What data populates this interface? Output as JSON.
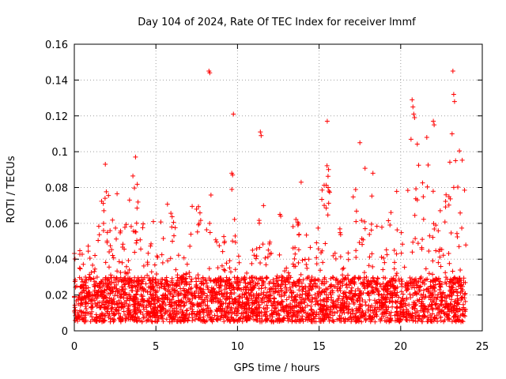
{
  "chart_data": {
    "type": "scatter",
    "title": "Day 104 of 2024, Rate Of TEC Index for receiver lmmf",
    "xlabel": "GPS time / hours",
    "ylabel": "ROTI / TECUs",
    "xlim": [
      0,
      25
    ],
    "ylim": [
      0,
      0.16
    ],
    "x_ticks": [
      0,
      5,
      10,
      15,
      20,
      25
    ],
    "x_tick_labels": [
      "0",
      "5",
      "10",
      "15",
      "20",
      "25"
    ],
    "y_ticks": [
      0,
      0.02,
      0.04,
      0.06,
      0.08,
      0.1,
      0.12,
      0.14,
      0.16
    ],
    "y_tick_labels": [
      "0",
      "0.02",
      "0.04",
      "0.06",
      "0.08",
      "0.1",
      "0.12",
      "0.14",
      "0.16"
    ],
    "grid": true,
    "marker": "+",
    "series": [
      {
        "name": "ROTI",
        "color": "#ff0000",
        "x_range": [
          0,
          24
        ],
        "baseline_band": [
          0.005,
          0.03
        ],
        "envelope": [
          [
            0.0,
            0.045
          ],
          [
            1.0,
            0.05
          ],
          [
            1.8,
            0.09
          ],
          [
            2.6,
            0.085
          ],
          [
            3.0,
            0.06
          ],
          [
            3.8,
            0.097
          ],
          [
            4.5,
            0.05
          ],
          [
            5.2,
            0.075
          ],
          [
            6.0,
            0.07
          ],
          [
            7.0,
            0.035
          ],
          [
            7.3,
            0.085
          ],
          [
            8.0,
            0.06
          ],
          [
            8.3,
            0.08
          ],
          [
            9.0,
            0.045
          ],
          [
            9.6,
            0.088
          ],
          [
            10.5,
            0.03
          ],
          [
            11.2,
            0.075
          ],
          [
            12.0,
            0.065
          ],
          [
            13.0,
            0.035
          ],
          [
            13.8,
            0.083
          ],
          [
            14.5,
            0.045
          ],
          [
            15.5,
            0.095
          ],
          [
            16.5,
            0.05
          ],
          [
            17.5,
            0.093
          ],
          [
            18.3,
            0.088
          ],
          [
            19.0,
            0.055
          ],
          [
            19.8,
            0.08
          ],
          [
            20.5,
            0.11
          ],
          [
            21.5,
            0.11
          ],
          [
            22.3,
            0.08
          ],
          [
            22.8,
            0.095
          ],
          [
            23.3,
            0.11
          ],
          [
            24.0,
            0.092
          ]
        ],
        "outliers": [
          [
            8.25,
            0.145
          ],
          [
            8.3,
            0.144
          ],
          [
            9.75,
            0.121
          ],
          [
            11.4,
            0.111
          ],
          [
            11.45,
            0.109
          ],
          [
            15.5,
            0.117
          ],
          [
            23.2,
            0.145
          ],
          [
            23.25,
            0.132
          ],
          [
            23.3,
            0.128
          ],
          [
            20.7,
            0.129
          ],
          [
            20.75,
            0.125
          ],
          [
            20.8,
            0.121
          ],
          [
            20.85,
            0.119
          ],
          [
            22.0,
            0.117
          ],
          [
            22.05,
            0.115
          ],
          [
            23.15,
            0.11
          ],
          [
            21.6,
            0.108
          ],
          [
            17.5,
            0.105
          ],
          [
            9.65,
            0.088
          ],
          [
            9.7,
            0.087
          ],
          [
            15.55,
            0.08
          ],
          [
            15.6,
            0.078
          ],
          [
            1.9,
            0.093
          ],
          [
            3.75,
            0.097
          ],
          [
            12.6,
            0.065
          ],
          [
            12.65,
            0.064
          ],
          [
            13.9,
            0.083
          ],
          [
            18.3,
            0.088
          ]
        ]
      }
    ]
  }
}
